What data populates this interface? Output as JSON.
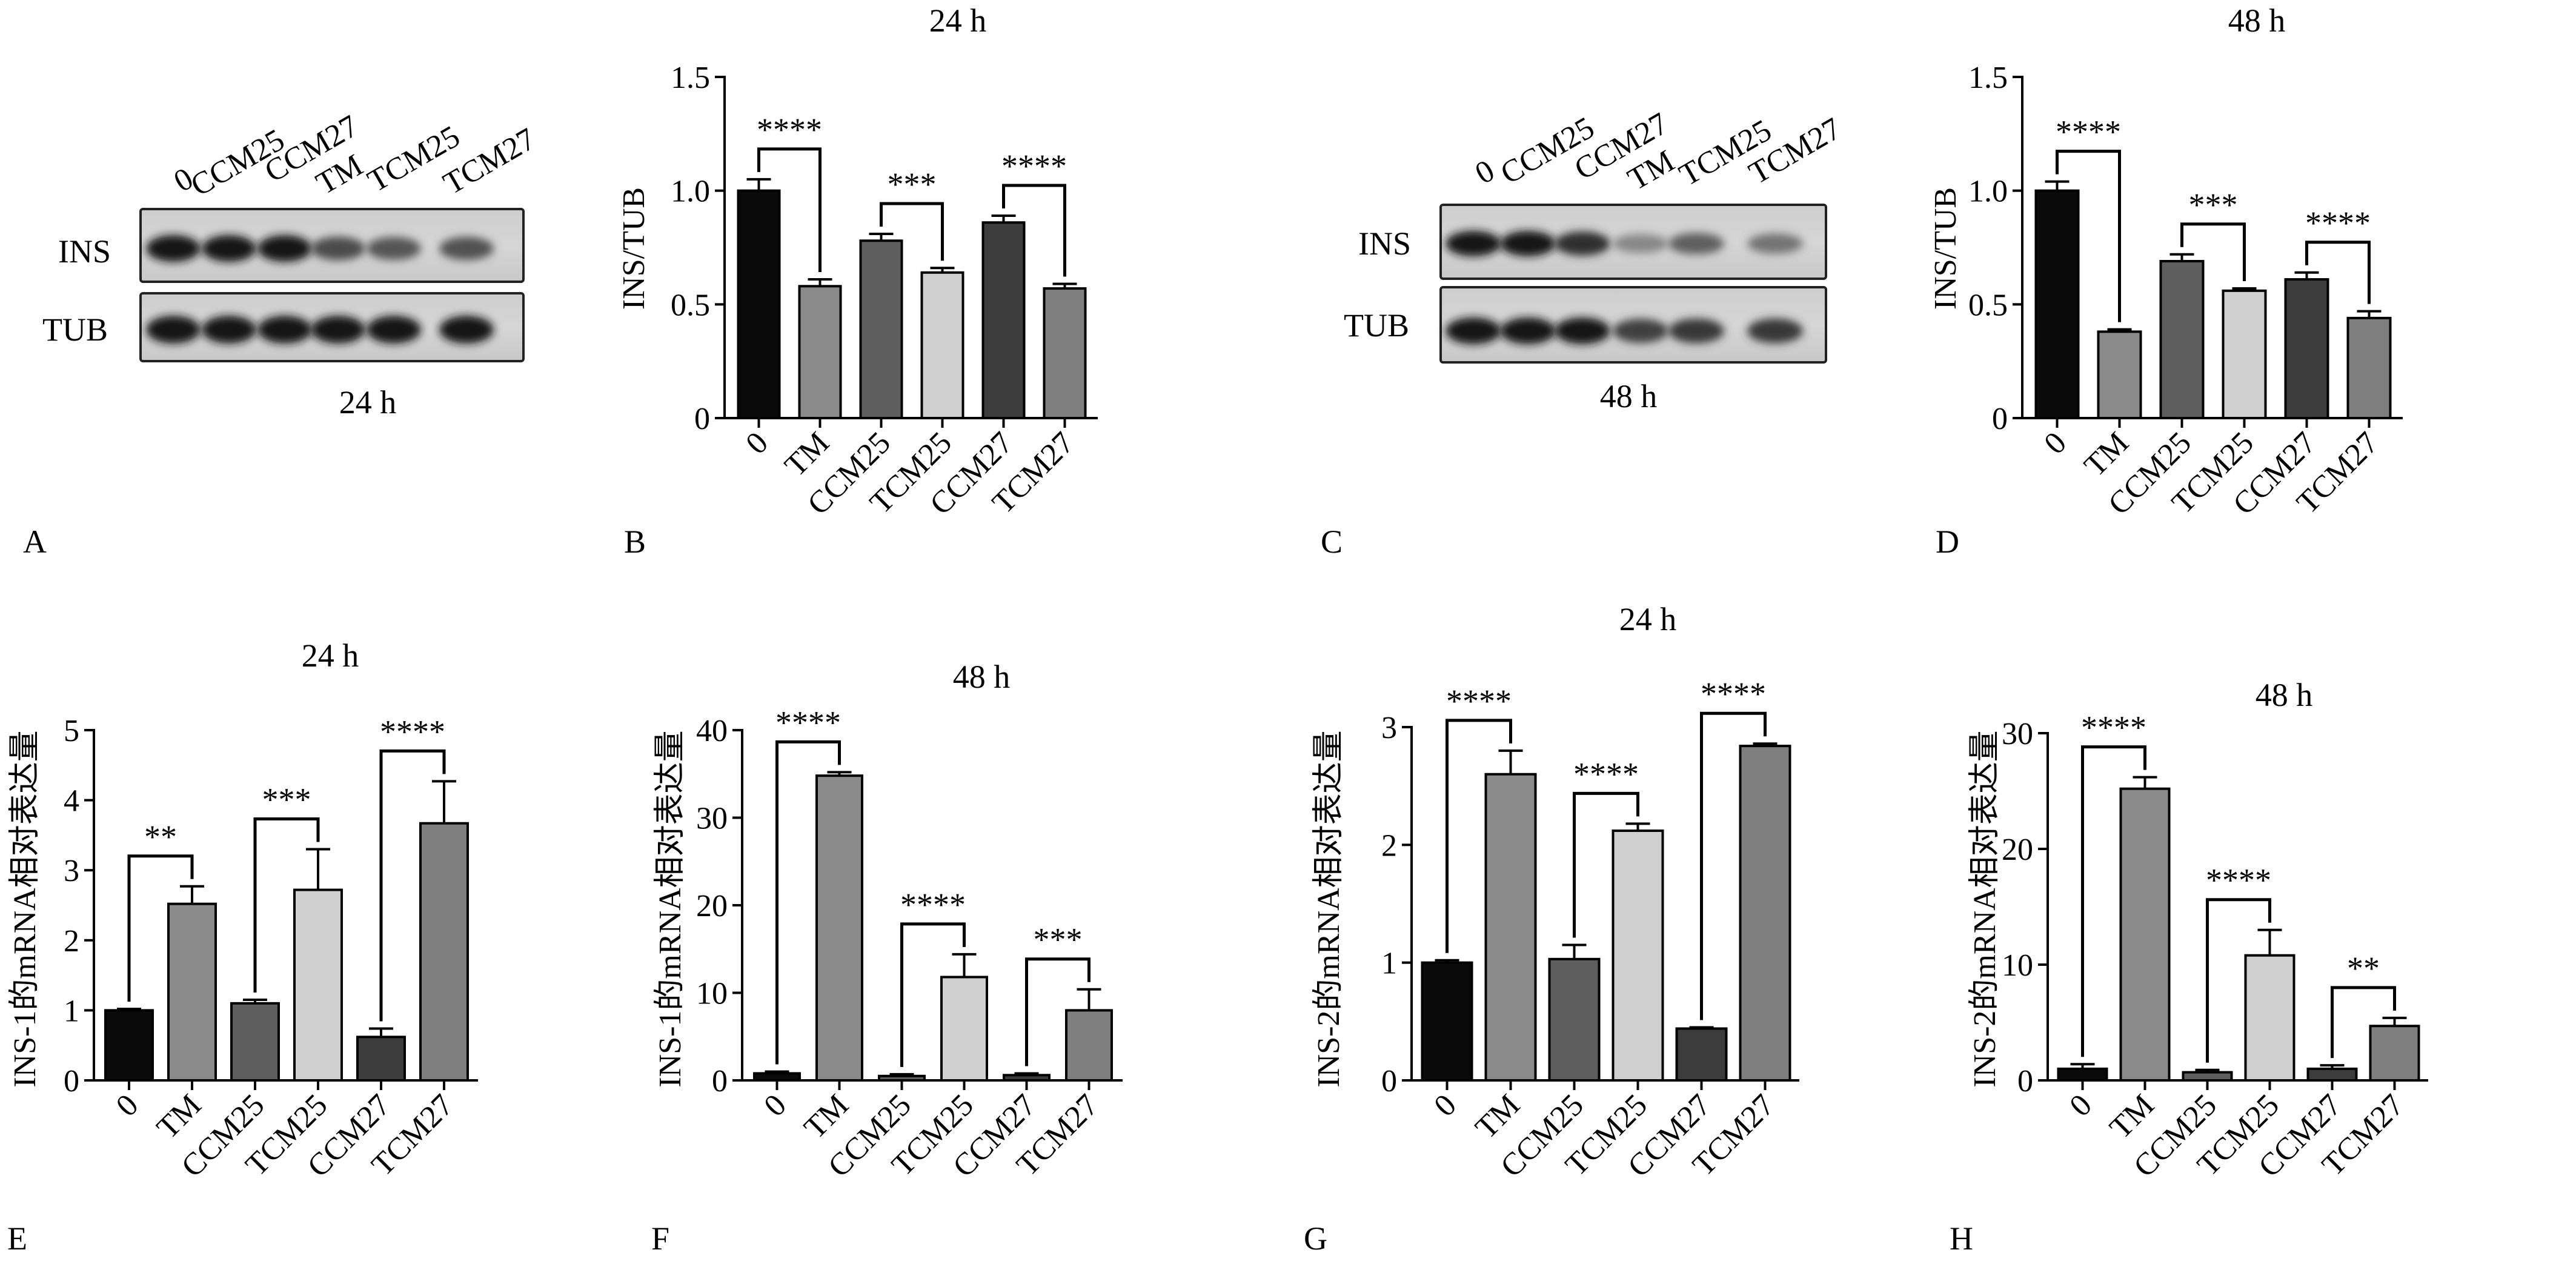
{
  "figure": {
    "panels": [
      {
        "letter": "A",
        "caption": "24 h",
        "markers": [
          "INS",
          "TUB"
        ],
        "lanes": [
          "0",
          "CCM25",
          "CCM27",
          "TM",
          "TCM25",
          "TCM27"
        ],
        "ins_intensity": [
          1.0,
          1.0,
          1.0,
          0.75,
          0.7,
          0.72
        ],
        "tub_intensity": [
          1.0,
          1.0,
          1.0,
          1.0,
          1.0,
          1.0
        ]
      },
      {
        "letter": "C",
        "caption": "48 h",
        "markers": [
          "INS",
          "TUB"
        ],
        "lanes": [
          "0",
          "CCM25",
          "CCM27",
          "TM",
          "TCM25",
          "TCM27"
        ],
        "ins_intensity": [
          1.0,
          1.0,
          0.9,
          0.45,
          0.65,
          0.55
        ],
        "tub_intensity": [
          1.0,
          1.0,
          1.0,
          0.8,
          0.85,
          0.85
        ]
      }
    ],
    "other_letters": [
      "B",
      "D",
      "E",
      "F",
      "G",
      "H"
    ]
  },
  "colors": {
    "0": "#0a0a0a",
    "TM": "#8a8a8a",
    "CCM25": "#5e5e5e",
    "TCM25": "#cfcfcf",
    "CCM27": "#3c3c3c",
    "TCM27": "#7e7e7e"
  },
  "chart_data": [
    {
      "id": "B",
      "type": "bar",
      "title": "24 h",
      "ylabel": "INS/TUB",
      "categories": [
        "0",
        "TM",
        "CCM25",
        "TCM25",
        "CCM27",
        "TCM27"
      ],
      "values": [
        1.0,
        0.58,
        0.78,
        0.64,
        0.86,
        0.57
      ],
      "errors": [
        0.05,
        0.03,
        0.03,
        0.02,
        0.03,
        0.02
      ],
      "ylim": [
        0,
        1.5
      ],
      "yticks": [
        "0",
        "0.5",
        "1.0",
        "1.5"
      ],
      "significance": [
        {
          "from": 0,
          "to": 1,
          "label": "****"
        },
        {
          "from": 2,
          "to": 3,
          "label": "***"
        },
        {
          "from": 4,
          "to": 5,
          "label": "****"
        }
      ]
    },
    {
      "id": "D",
      "type": "bar",
      "title": "48 h",
      "ylabel": "INS/TUB",
      "categories": [
        "0",
        "TM",
        "CCM25",
        "TCM25",
        "CCM27",
        "TCM27"
      ],
      "values": [
        1.0,
        0.38,
        0.69,
        0.56,
        0.61,
        0.44
      ],
      "errors": [
        0.04,
        0.01,
        0.03,
        0.01,
        0.03,
        0.03
      ],
      "ylim": [
        0,
        1.5
      ],
      "yticks": [
        "0",
        "0.5",
        "1.0",
        "1.5"
      ],
      "significance": [
        {
          "from": 0,
          "to": 1,
          "label": "****"
        },
        {
          "from": 2,
          "to": 3,
          "label": "***"
        },
        {
          "from": 4,
          "to": 5,
          "label": "****"
        }
      ]
    },
    {
      "id": "E",
      "type": "bar",
      "title": "24 h",
      "ylabel": "INS-1的mRNA相对表达量",
      "categories": [
        "0",
        "TM",
        "CCM25",
        "TCM25",
        "CCM27",
        "TCM27"
      ],
      "values": [
        1.0,
        2.52,
        1.1,
        2.72,
        0.62,
        3.67
      ],
      "errors": [
        0.02,
        0.25,
        0.05,
        0.58,
        0.12,
        0.6
      ],
      "ylim": [
        0,
        5
      ],
      "yticks": [
        "0",
        "1",
        "2",
        "3",
        "4",
        "5"
      ],
      "significance": [
        {
          "from": 0,
          "to": 1,
          "label": "**"
        },
        {
          "from": 2,
          "to": 3,
          "label": "***"
        },
        {
          "from": 4,
          "to": 5,
          "label": "****"
        }
      ]
    },
    {
      "id": "F",
      "type": "bar",
      "title": "48 h",
      "ylabel": "INS-1的mRNA相对表达量",
      "categories": [
        "0",
        "TM",
        "CCM25",
        "TCM25",
        "CCM27",
        "TCM27"
      ],
      "values": [
        0.8,
        34.8,
        0.5,
        11.8,
        0.6,
        8.0
      ],
      "errors": [
        0.2,
        0.4,
        0.2,
        2.6,
        0.2,
        2.4
      ],
      "ylim": [
        0,
        40
      ],
      "yticks": [
        "0",
        "10",
        "20",
        "30",
        "40"
      ],
      "significance": [
        {
          "from": 0,
          "to": 1,
          "label": "****"
        },
        {
          "from": 2,
          "to": 3,
          "label": "****"
        },
        {
          "from": 4,
          "to": 5,
          "label": "***"
        }
      ]
    },
    {
      "id": "G",
      "type": "bar",
      "title": "24 h",
      "ylabel": "INS-2的mRNA相对表达量",
      "categories": [
        "0",
        "TM",
        "CCM25",
        "TCM25",
        "CCM27",
        "TCM27"
      ],
      "values": [
        1.0,
        2.6,
        1.03,
        2.12,
        0.44,
        2.84
      ],
      "errors": [
        0.02,
        0.2,
        0.12,
        0.06,
        0.01,
        0.02
      ],
      "ylim": [
        0,
        3
      ],
      "yticks": [
        "0",
        "1",
        "2",
        "3"
      ],
      "significance": [
        {
          "from": 0,
          "to": 1,
          "label": "****"
        },
        {
          "from": 2,
          "to": 3,
          "label": "****"
        },
        {
          "from": 4,
          "to": 5,
          "label": "****"
        }
      ]
    },
    {
      "id": "H",
      "type": "bar",
      "title": "48 h",
      "ylabel": "INS-2的mRNA相对表达量",
      "categories": [
        "0",
        "TM",
        "CCM25",
        "TCM25",
        "CCM27",
        "TCM27"
      ],
      "values": [
        1.0,
        25.2,
        0.7,
        10.8,
        1.0,
        4.7
      ],
      "errors": [
        0.4,
        1.0,
        0.2,
        2.2,
        0.3,
        0.7
      ],
      "ylim": [
        0,
        30
      ],
      "yticks": [
        "0",
        "10",
        "20",
        "30"
      ],
      "significance": [
        {
          "from": 0,
          "to": 1,
          "label": "****"
        },
        {
          "from": 2,
          "to": 3,
          "label": "****"
        },
        {
          "from": 4,
          "to": 5,
          "label": "**"
        }
      ]
    }
  ]
}
